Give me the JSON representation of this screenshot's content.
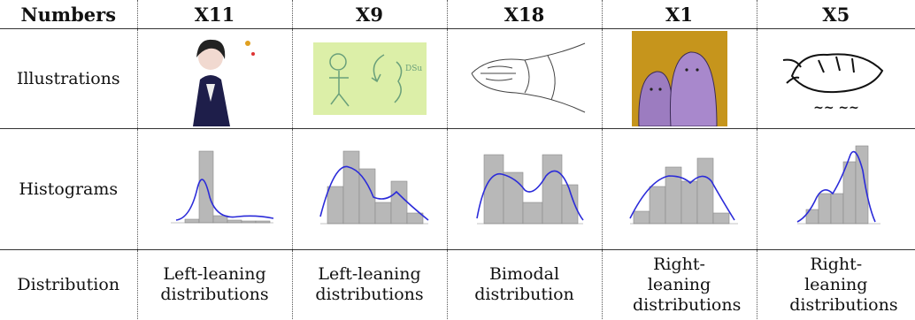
{
  "table": {
    "header": [
      "Numbers",
      "X11",
      "X9",
      "X18",
      "X1",
      "X5"
    ],
    "rows": [
      [
        "Illustrations"
      ],
      [
        "Histograms"
      ],
      [
        "Distribution",
        "Left-leaning distributions",
        "Left-leaning distributions",
        "Bimodal distribution",
        "Right-leaning distributions",
        "Right-leaning distributions"
      ]
    ]
  }
}
